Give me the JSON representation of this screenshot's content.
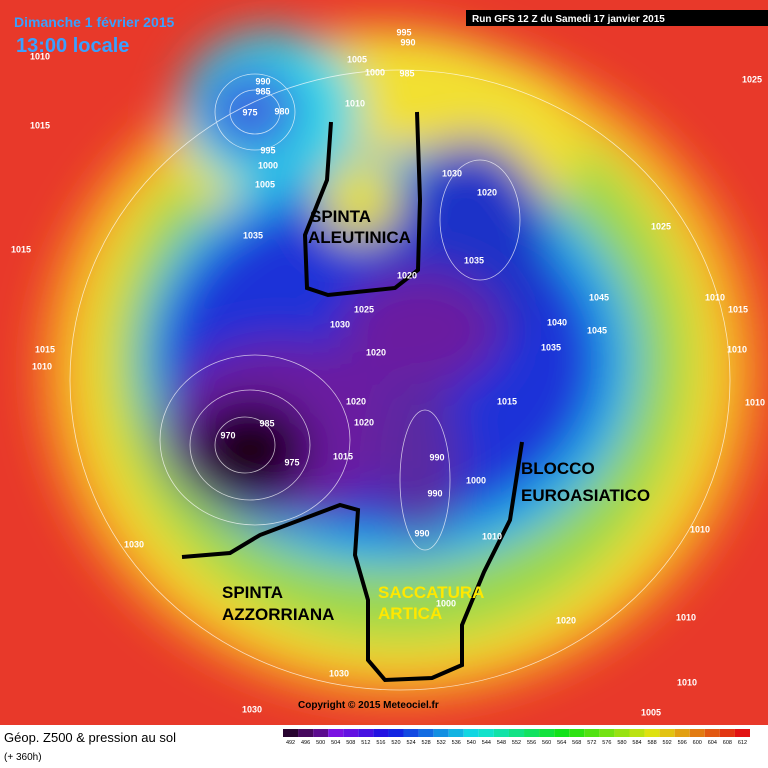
{
  "header": {
    "date": "Dimanche 1 février 2015",
    "time": "13:00 locale",
    "run": "Run GFS 12 Z du Samedi 17 janvier 2015"
  },
  "annotations": [
    "SPINTA",
    "ALEUTINICA",
    "BLOCCO",
    "EUROASIATICO",
    "SACCATURA",
    "ARTICA",
    "SPINTA",
    "AZZORRIANA"
  ],
  "isobars": [
    1010,
    1015,
    990,
    985,
    975,
    980,
    995,
    1000,
    1005,
    1005,
    1000,
    995,
    990,
    985,
    1010,
    1030,
    1020,
    1035,
    1035,
    1020,
    1025,
    1030,
    1020,
    1020,
    1020,
    1015,
    985,
    970,
    975,
    1015,
    990,
    990,
    990,
    1000,
    1010,
    1040,
    1045,
    1045,
    1035,
    1025,
    1010,
    1015,
    1010,
    1010,
    1030,
    1015,
    1015,
    1010,
    1030,
    1030,
    1000,
    1020,
    1010,
    1010,
    1005,
    1010,
    1025
  ],
  "copyright": "Copyright © 2015 Meteociel.fr",
  "footer": {
    "title": "Géop. Z500 & pression au sol",
    "lead": "(+ 360h)"
  },
  "scale": [
    492,
    496,
    500,
    504,
    508,
    512,
    516,
    520,
    524,
    528,
    532,
    536,
    540,
    544,
    548,
    552,
    556,
    560,
    564,
    568,
    572,
    576,
    580,
    584,
    588,
    592,
    596,
    600,
    604,
    608,
    612
  ]
}
